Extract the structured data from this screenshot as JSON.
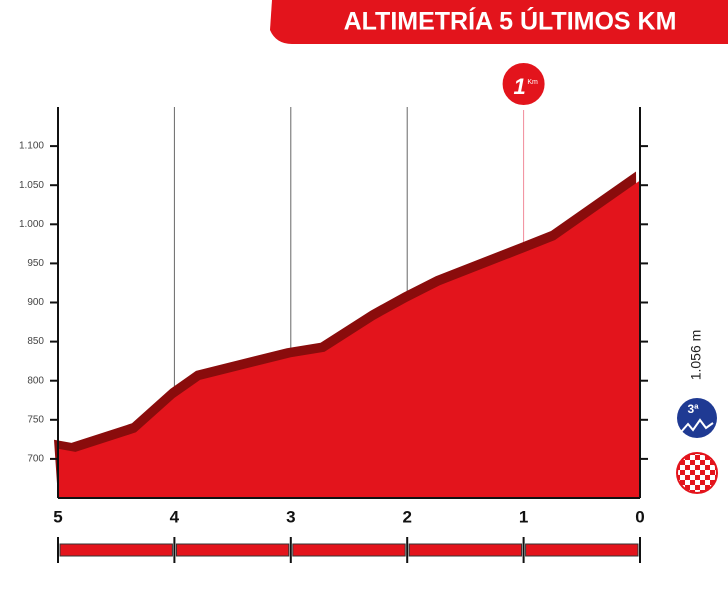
{
  "chart_data": {
    "type": "area",
    "title": "ALTIMETRÍA 5 ÚLTIMOS KM",
    "x": [
      5,
      4.85,
      4.33,
      4,
      3.78,
      3,
      2.71,
      2.28,
      2,
      1.72,
      1,
      0.73,
      0
    ],
    "values": [
      713,
      709,
      734,
      778,
      801,
      830,
      837,
      878,
      901,
      922,
      964,
      980,
      1056
    ],
    "color": "#e3141c",
    "shade_color": "#8a0c0c",
    "xlim": [
      5,
      0
    ],
    "xticks": [
      5,
      4,
      3,
      2,
      1,
      0
    ],
    "ylim": [
      650,
      1150
    ],
    "yticks": [
      700,
      750,
      800,
      850,
      900,
      950,
      {
        "value": 1000,
        "label": "1.000"
      },
      {
        "value": 1050,
        "label": "1.050"
      },
      {
        "value": 1100,
        "label": "1.100"
      }
    ],
    "grid": true,
    "finish_altitude": "1.056 m",
    "climb_category": "3ª",
    "last_km_badge": {
      "number": "1",
      "unit": "Km"
    }
  }
}
